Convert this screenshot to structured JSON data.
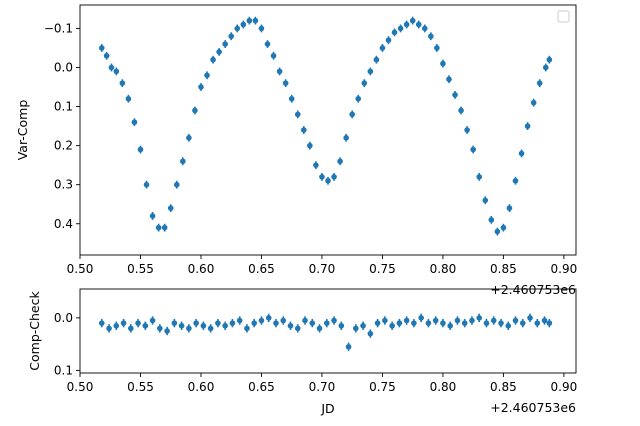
{
  "chart_data": [
    {
      "type": "scatter",
      "panel": "top",
      "title": "",
      "xlabel": "",
      "ylabel": "Var-Comp",
      "x_offset_label": "+2.460753e6",
      "xlim": [
        0.5,
        0.91
      ],
      "ylim": [
        0.48,
        -0.16
      ],
      "y_inverted": true,
      "xticks": [
        0.5,
        0.55,
        0.6,
        0.65,
        0.7,
        0.75,
        0.8,
        0.85,
        0.9
      ],
      "xtick_labels": [
        "0.50",
        "0.55",
        "0.60",
        "0.65",
        "0.70",
        "0.75",
        "0.80",
        "0.85",
        "0.90"
      ],
      "yticks": [
        -0.1,
        0.0,
        0.1,
        0.2,
        0.3,
        0.4
      ],
      "ytick_labels": [
        "−0.1",
        "0.0",
        "0.1",
        "0.2",
        "0.3",
        "0.4"
      ],
      "grid": false,
      "legend": "upper-right",
      "legend_entries": [],
      "color": "#1f77b4",
      "series": [
        {
          "x": [
            0.518,
            0.522,
            0.526,
            0.53,
            0.535,
            0.54,
            0.545,
            0.55,
            0.555,
            0.56,
            0.565,
            0.57,
            0.575,
            0.58,
            0.585,
            0.59,
            0.595,
            0.6,
            0.605,
            0.61,
            0.615,
            0.62,
            0.625,
            0.63,
            0.635,
            0.64,
            0.645,
            0.65,
            0.655,
            0.66,
            0.665,
            0.67,
            0.675,
            0.68,
            0.685,
            0.69,
            0.695,
            0.7,
            0.705,
            0.71,
            0.715,
            0.72,
            0.725,
            0.73,
            0.735,
            0.74,
            0.745,
            0.75,
            0.755,
            0.76,
            0.765,
            0.77,
            0.775,
            0.78,
            0.785,
            0.79,
            0.795,
            0.8,
            0.805,
            0.81,
            0.815,
            0.82,
            0.825,
            0.83,
            0.835,
            0.84,
            0.845,
            0.85,
            0.855,
            0.86,
            0.865,
            0.87,
            0.875,
            0.88,
            0.885,
            0.888
          ],
          "y": [
            -0.05,
            -0.03,
            0.0,
            0.01,
            0.04,
            0.08,
            0.14,
            0.21,
            0.3,
            0.38,
            0.41,
            0.41,
            0.36,
            0.3,
            0.24,
            0.18,
            0.11,
            0.05,
            0.02,
            -0.02,
            -0.04,
            -0.06,
            -0.08,
            -0.1,
            -0.11,
            -0.12,
            -0.12,
            -0.1,
            -0.06,
            -0.03,
            0.01,
            0.04,
            0.08,
            0.12,
            0.16,
            0.2,
            0.25,
            0.28,
            0.29,
            0.28,
            0.24,
            0.18,
            0.12,
            0.08,
            0.04,
            0.01,
            -0.02,
            -0.05,
            -0.07,
            -0.09,
            -0.1,
            -0.11,
            -0.12,
            -0.11,
            -0.1,
            -0.08,
            -0.05,
            -0.01,
            0.03,
            0.07,
            0.11,
            0.16,
            0.21,
            0.28,
            0.34,
            0.39,
            0.42,
            0.41,
            0.36,
            0.29,
            0.22,
            0.15,
            0.09,
            0.04,
            0.0,
            -0.02
          ],
          "error": 0.01
        }
      ]
    },
    {
      "type": "scatter",
      "panel": "bottom",
      "title": "",
      "xlabel": "JD",
      "ylabel": "Comp-Check",
      "x_offset_label": "+2.460753e6",
      "xlim": [
        0.5,
        0.91
      ],
      "ylim": [
        0.105,
        -0.055
      ],
      "y_inverted": true,
      "xticks": [
        0.5,
        0.55,
        0.6,
        0.65,
        0.7,
        0.75,
        0.8,
        0.85,
        0.9
      ],
      "xtick_labels": [
        "0.50",
        "0.55",
        "0.60",
        "0.65",
        "0.70",
        "0.75",
        "0.80",
        "0.85",
        "0.90"
      ],
      "yticks": [
        0.0,
        0.1
      ],
      "ytick_labels": [
        "0.0",
        "0.1"
      ],
      "grid": false,
      "color": "#1f77b4",
      "series": [
        {
          "x": [
            0.518,
            0.524,
            0.53,
            0.536,
            0.542,
            0.548,
            0.554,
            0.56,
            0.566,
            0.572,
            0.578,
            0.584,
            0.59,
            0.596,
            0.602,
            0.608,
            0.614,
            0.62,
            0.626,
            0.632,
            0.638,
            0.644,
            0.65,
            0.656,
            0.662,
            0.668,
            0.674,
            0.68,
            0.686,
            0.692,
            0.698,
            0.704,
            0.71,
            0.716,
            0.722,
            0.728,
            0.734,
            0.74,
            0.746,
            0.752,
            0.758,
            0.764,
            0.77,
            0.776,
            0.782,
            0.788,
            0.794,
            0.8,
            0.806,
            0.812,
            0.818,
            0.824,
            0.83,
            0.836,
            0.842,
            0.848,
            0.854,
            0.86,
            0.866,
            0.872,
            0.878,
            0.884,
            0.888
          ],
          "y": [
            0.01,
            0.02,
            0.015,
            0.01,
            0.02,
            0.01,
            0.015,
            0.005,
            0.02,
            0.025,
            0.01,
            0.015,
            0.02,
            0.01,
            0.015,
            0.02,
            0.01,
            0.015,
            0.01,
            0.005,
            0.02,
            0.01,
            0.005,
            0.0,
            0.01,
            0.005,
            0.015,
            0.02,
            0.005,
            0.01,
            0.02,
            0.01,
            0.005,
            0.015,
            0.055,
            0.02,
            0.015,
            0.03,
            0.01,
            0.005,
            0.015,
            0.01,
            0.005,
            0.01,
            0.0,
            0.01,
            0.005,
            0.01,
            0.015,
            0.005,
            0.01,
            0.005,
            0.0,
            0.01,
            0.005,
            0.01,
            0.015,
            0.005,
            0.01,
            0.0,
            0.01,
            0.005,
            0.01
          ],
          "error": 0.008
        }
      ]
    }
  ]
}
